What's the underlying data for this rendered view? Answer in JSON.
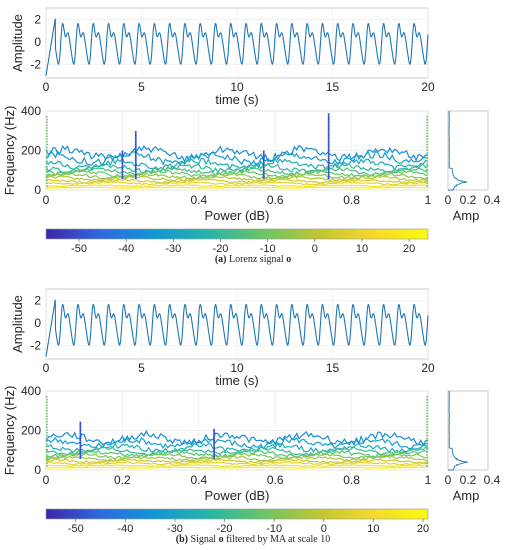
{
  "chart_data": [
    {
      "id": "a",
      "type": "line",
      "panel": "time",
      "xlabel": "time (s)",
      "ylabel": "Amplitude",
      "xlim": [
        0,
        20
      ],
      "ylim": [
        -3.2,
        3
      ],
      "xticks": [
        "0",
        "5",
        "10",
        "15",
        "20"
      ],
      "yticks": [
        "-2",
        "0",
        "2"
      ],
      "grid": true,
      "line_color": "#1f77b4",
      "series": [
        {
          "period_s": 0.8,
          "min": -3,
          "max": 2.3
        }
      ]
    },
    {
      "id": "a",
      "type": "line",
      "panel": "spectrum",
      "xlabel": "Power (dB)",
      "ylabel": "Frequency (Hz)",
      "xlim": [
        0,
        1
      ],
      "ylim": [
        0,
        400
      ],
      "xticks": [
        "0",
        "0.2",
        "0.4",
        "0.6",
        "0.8",
        "1"
      ],
      "yticks": [
        "0",
        "200",
        "400"
      ],
      "grid": true,
      "curve_levels_hz": [
        185,
        160,
        130,
        110,
        95,
        82,
        70,
        58,
        45,
        34,
        22,
        12
      ],
      "spikes": [
        {
          "x": 0.2,
          "y": 200
        },
        {
          "x": 0.235,
          "y": 300
        },
        {
          "x": 0.57,
          "y": 200
        },
        {
          "x": 0.74,
          "y": 385
        }
      ]
    },
    {
      "id": "a",
      "type": "bar",
      "panel": "amp",
      "xlabel": "Amp",
      "xlim": [
        0,
        0.4
      ],
      "xticks": [
        "0",
        "0.2",
        "0.4"
      ],
      "orientation": "horizontal"
    },
    {
      "id": "b",
      "type": "line",
      "panel": "time",
      "xlabel": "time (s)",
      "ylabel": "Amplitude",
      "xlim": [
        0,
        20
      ],
      "ylim": [
        -3.2,
        3
      ],
      "xticks": [
        "0",
        "5",
        "10",
        "15",
        "20"
      ],
      "yticks": [
        "-2",
        "0",
        "2"
      ],
      "grid": true,
      "line_color": "#1f77b4",
      "series": [
        {
          "period_s": 0.8,
          "min": -3,
          "max": 2.3
        }
      ]
    },
    {
      "id": "b",
      "type": "line",
      "panel": "spectrum",
      "xlabel": "Power (dB)",
      "ylabel": "Frequency (Hz)",
      "xlim": [
        0,
        1
      ],
      "ylim": [
        0,
        400
      ],
      "xticks": [
        "0",
        "0.2",
        "0.4",
        "0.6",
        "0.8",
        "1"
      ],
      "yticks": [
        "0",
        "200",
        "400"
      ],
      "grid": true,
      "curve_levels_hz": [
        160,
        135,
        110,
        95,
        82,
        70,
        58,
        45,
        34,
        22,
        12
      ],
      "spikes": [
        {
          "x": 0.09,
          "y": 240
        },
        {
          "x": 0.44,
          "y": 210
        }
      ]
    },
    {
      "id": "b",
      "type": "bar",
      "panel": "amp",
      "xlabel": "Amp",
      "xlim": [
        0,
        0.4
      ],
      "xticks": [
        "0",
        "0.2",
        "0.4"
      ],
      "orientation": "horizontal"
    }
  ],
  "colorbars": [
    {
      "id": "a",
      "range": [
        -57,
        24
      ],
      "ticks": [
        "-50",
        "-40",
        "-30",
        "-20",
        "-10",
        "0",
        "10",
        "20"
      ],
      "tick_values": [
        -50,
        -40,
        -30,
        -20,
        -10,
        0,
        10,
        20
      ]
    },
    {
      "id": "b",
      "range": [
        -56,
        21
      ],
      "ticks": [
        "-50",
        "-40",
        "-30",
        "-20",
        "-10",
        "0",
        "10",
        "20"
      ],
      "tick_values": [
        -50,
        -40,
        -30,
        -20,
        -10,
        0,
        10,
        20
      ]
    }
  ],
  "captions": {
    "a": {
      "tag": "(a)",
      "text": "Lorenz signal",
      "symbol": "o"
    },
    "b": {
      "tag": "(b)",
      "text": "Signal",
      "symbol": "o",
      "rest": "filtered by MA at scale 10"
    }
  },
  "colormap": [
    "#3e26a8",
    "#2f6ae0",
    "#1197d5",
    "#27b6a6",
    "#6bc666",
    "#c1c530",
    "#f5d92b",
    "#f9fb0e"
  ]
}
